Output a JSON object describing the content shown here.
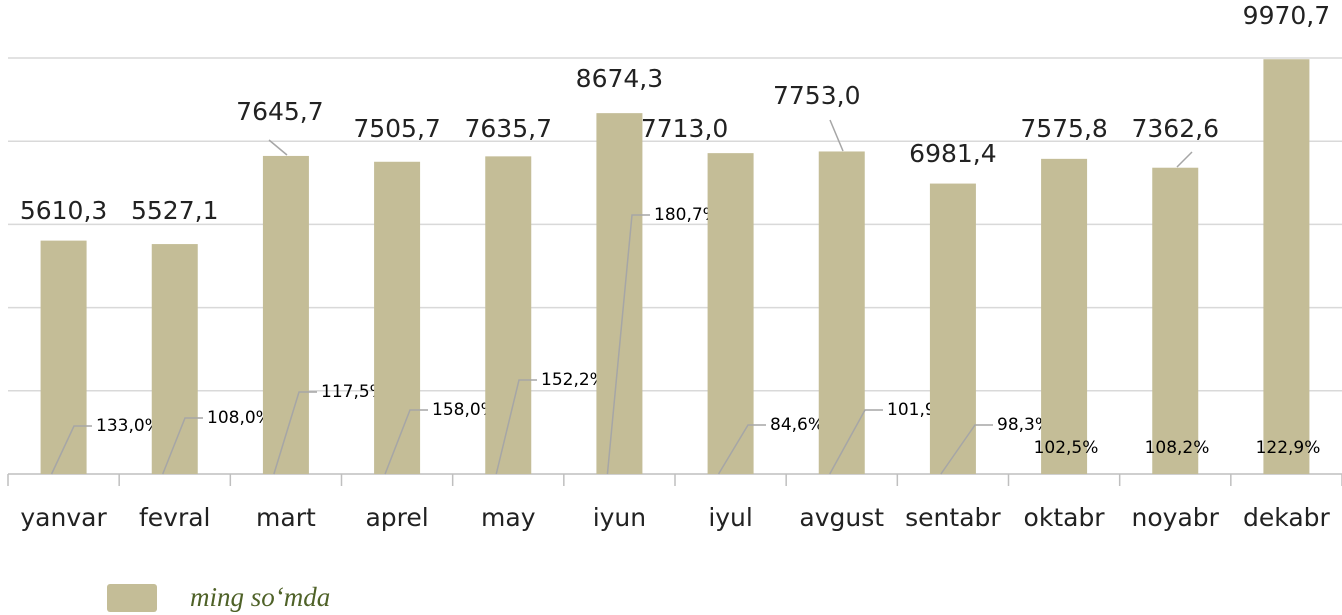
{
  "chart_data": {
    "type": "bar",
    "categories": [
      "yanvar",
      "fevral",
      "mart",
      "aprel",
      "may",
      "iyun",
      "iyul",
      "avgust",
      "sentabr",
      "oktabr",
      "noyabr",
      "dekabr"
    ],
    "series": [
      {
        "name": "ming so‘mda",
        "color": "#c4bd97",
        "values": [
          5610.3,
          5527.1,
          7645.7,
          7505.7,
          7635.7,
          8674.3,
          7713.0,
          7753.0,
          6981.4,
          7575.8,
          7362.6,
          9970.7
        ],
        "value_labels": [
          "5610,3",
          "5527,1",
          "7645,7",
          "7505,7",
          "7635,7",
          "8674,3",
          "7713,0",
          "7753,0",
          "6981,4",
          "7575,8",
          "7362,6",
          "9970,7"
        ]
      }
    ],
    "annotations": [
      "133,0%",
      "108,0%",
      "117,5%",
      "158,0%",
      "152,2%",
      "180,7%",
      "84,6%",
      "101,9%",
      "98,3%",
      "102,5%",
      "108,2%",
      "122,9%"
    ],
    "ylim": [
      0,
      10000
    ],
    "yticks": [
      0,
      2000,
      4000,
      6000,
      8000,
      10000
    ],
    "grid": true,
    "legend": "bottom"
  }
}
